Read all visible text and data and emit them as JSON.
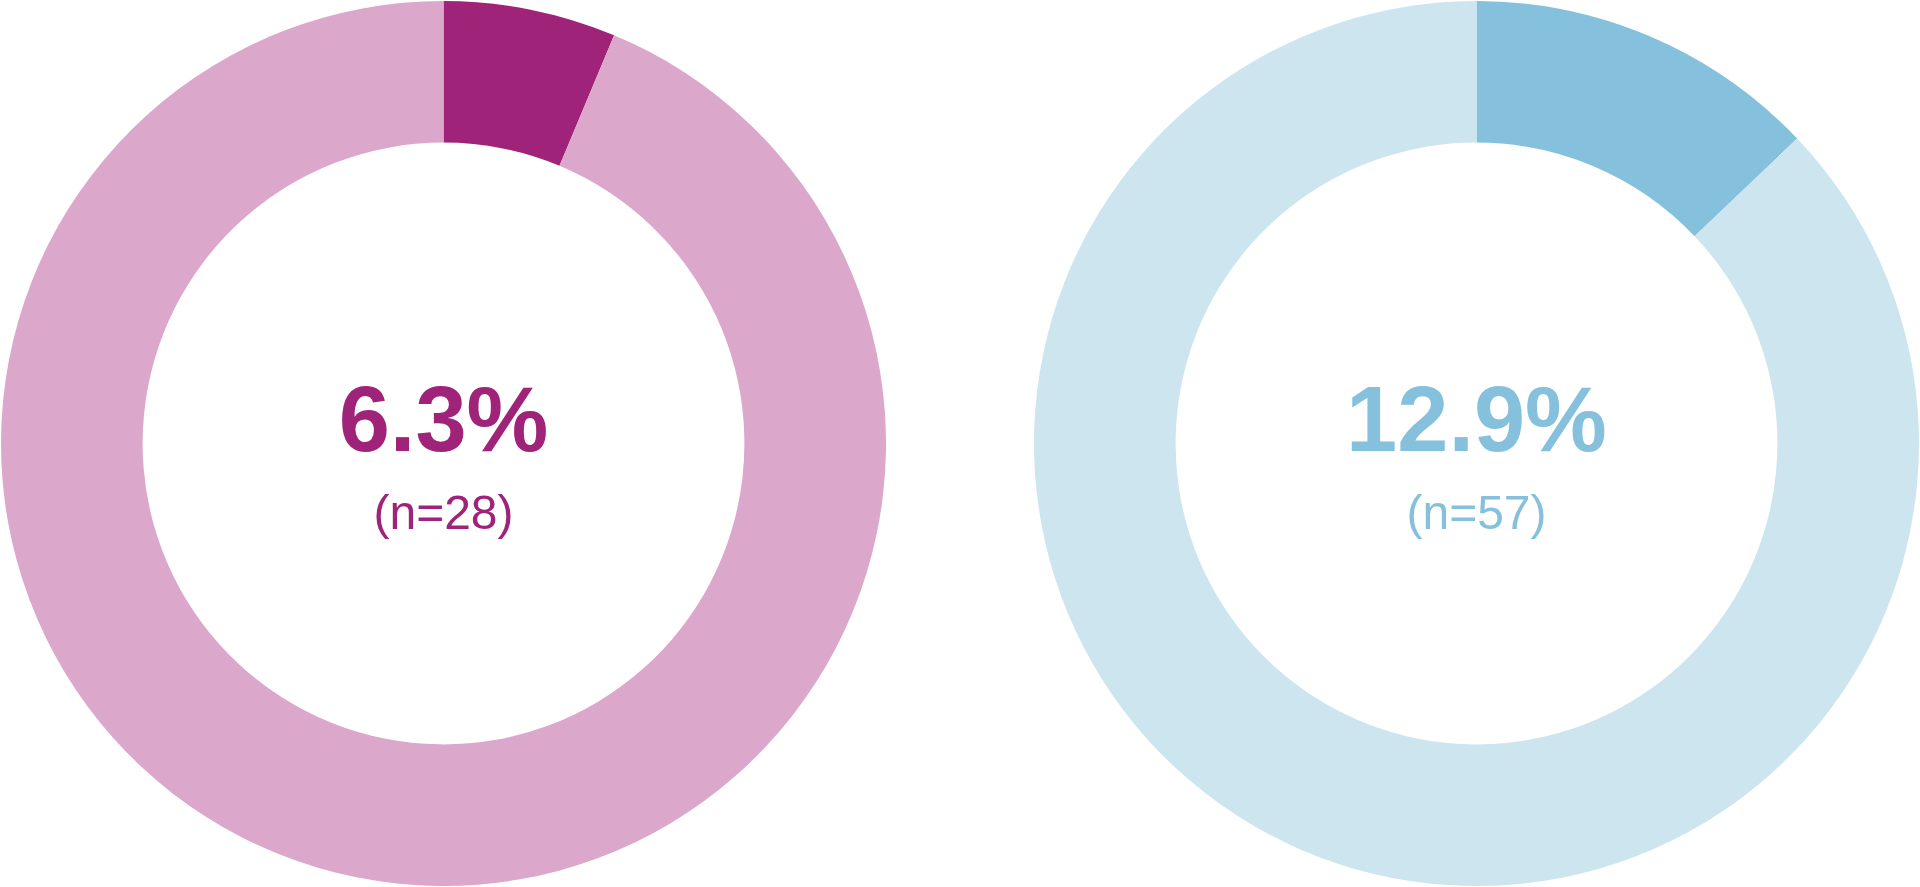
{
  "chart_data": [
    {
      "type": "donut",
      "categories": [
        null,
        null
      ],
      "values": [
        6.3,
        93.7
      ],
      "colors": [
        "#a0237a",
        "#dba7cb"
      ],
      "value_labels": [
        "6.3%",
        null
      ],
      "annotations": [
        "(n=28)"
      ],
      "legend": false
    },
    {
      "type": "donut",
      "categories": [
        null,
        null
      ],
      "values": [
        12.9,
        87.1
      ],
      "colors": [
        "#85c1dc",
        "#cde5ef"
      ],
      "value_labels": [
        "12.9%",
        null
      ],
      "annotations": [
        "(n=57)"
      ],
      "legend": false
    }
  ]
}
